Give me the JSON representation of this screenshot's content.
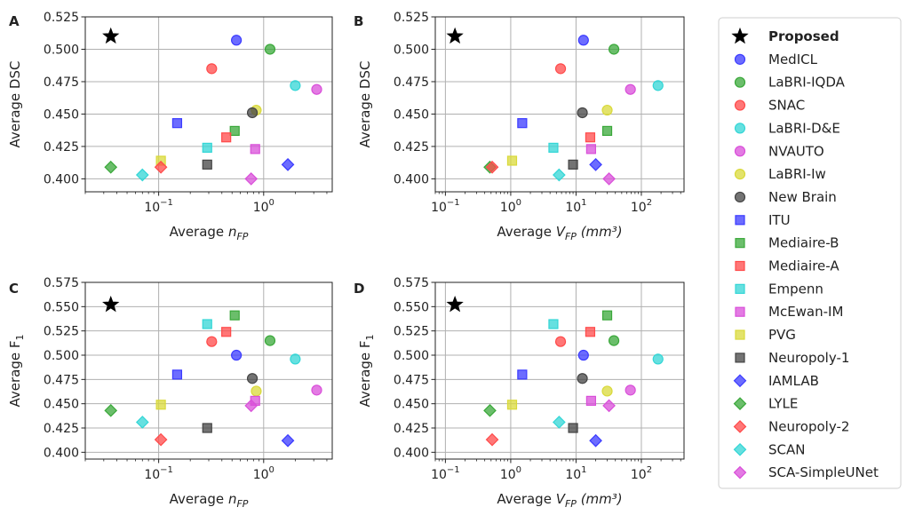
{
  "colors": {
    "MedICL": "#3b3bff",
    "LaBRI-IQDA": "#3aa83a",
    "SNAC": "#ff4a4a",
    "LaBRI-D&E": "#33d6d6",
    "NVAUTO": "#d94fd9",
    "LaBRI-Iw": "#d9d93a",
    "New Brain": "#444444",
    "ITU": "#3b3bff",
    "Mediaire-B": "#3aa83a",
    "Mediaire-A": "#ff4a4a",
    "Empenn": "#33d6d6",
    "McEwan-IM": "#d94fd9",
    "PVG": "#d9d93a",
    "Neuropoly-1": "#444444",
    "IAMLAB": "#3b3bff",
    "LYLE": "#3aa83a",
    "Neuropoly-2": "#ff4a4a",
    "SCAN": "#33d6d6",
    "SCA-SimpleUNet": "#d94fd9",
    "Proposed": "#000000"
  },
  "legend": [
    {
      "name": "Proposed",
      "marker": "star"
    },
    {
      "name": "MedICL",
      "marker": "circle"
    },
    {
      "name": "LaBRI-IQDA",
      "marker": "circle"
    },
    {
      "name": "SNAC",
      "marker": "circle"
    },
    {
      "name": "LaBRI-D&E",
      "marker": "circle"
    },
    {
      "name": "NVAUTO",
      "marker": "circle"
    },
    {
      "name": "LaBRI-Iw",
      "marker": "circle"
    },
    {
      "name": "New Brain",
      "marker": "circle"
    },
    {
      "name": "ITU",
      "marker": "square"
    },
    {
      "name": "Mediaire-B",
      "marker": "square"
    },
    {
      "name": "Mediaire-A",
      "marker": "square"
    },
    {
      "name": "Empenn",
      "marker": "square"
    },
    {
      "name": "McEwan-IM",
      "marker": "square"
    },
    {
      "name": "PVG",
      "marker": "square"
    },
    {
      "name": "Neuropoly-1",
      "marker": "square"
    },
    {
      "name": "IAMLAB",
      "marker": "diamond"
    },
    {
      "name": "LYLE",
      "marker": "diamond"
    },
    {
      "name": "Neuropoly-2",
      "marker": "diamond"
    },
    {
      "name": "SCAN",
      "marker": "diamond"
    },
    {
      "name": "SCA-SimpleUNet",
      "marker": "diamond"
    }
  ],
  "chart_data": [
    {
      "panel": "A",
      "type": "scatter",
      "xscale": "log",
      "xlabel_prefix": "Average ",
      "xlabel_var": "n",
      "xlabel_sub": "FP",
      "xlabel_suffix": "",
      "ylabel": "Average DSC",
      "ylabel_sub": "",
      "xlim": [
        0.02,
        4.5
      ],
      "ylim": [
        0.39,
        0.525
      ],
      "xticks": [
        {
          "v": 0.1,
          "base": "10",
          "exp": "−1"
        },
        {
          "v": 1,
          "base": "10",
          "exp": "0"
        }
      ],
      "yticks": [
        {
          "v": 0.4,
          "label": "0.400"
        },
        {
          "v": 0.425,
          "label": "0.425"
        },
        {
          "v": 0.45,
          "label": "0.450"
        },
        {
          "v": 0.475,
          "label": "0.475"
        },
        {
          "v": 0.5,
          "label": "0.500"
        },
        {
          "v": 0.525,
          "label": "0.525"
        }
      ],
      "points": [
        {
          "team": "Proposed",
          "x": 0.035,
          "y": 0.51
        },
        {
          "team": "MedICL",
          "x": 0.55,
          "y": 0.507
        },
        {
          "team": "LaBRI-IQDA",
          "x": 1.15,
          "y": 0.5
        },
        {
          "team": "SNAC",
          "x": 0.32,
          "y": 0.485
        },
        {
          "team": "LaBRI-D&E",
          "x": 2.0,
          "y": 0.472
        },
        {
          "team": "NVAUTO",
          "x": 3.2,
          "y": 0.469
        },
        {
          "team": "LaBRI-Iw",
          "x": 0.85,
          "y": 0.453
        },
        {
          "team": "New Brain",
          "x": 0.78,
          "y": 0.451
        },
        {
          "team": "ITU",
          "x": 0.15,
          "y": 0.443
        },
        {
          "team": "Mediaire-B",
          "x": 0.53,
          "y": 0.437
        },
        {
          "team": "Mediaire-A",
          "x": 0.44,
          "y": 0.432
        },
        {
          "team": "Empenn",
          "x": 0.29,
          "y": 0.424
        },
        {
          "team": "McEwan-IM",
          "x": 0.83,
          "y": 0.423
        },
        {
          "team": "PVG",
          "x": 0.105,
          "y": 0.414
        },
        {
          "team": "Neuropoly-1",
          "x": 0.29,
          "y": 0.411
        },
        {
          "team": "IAMLAB",
          "x": 1.7,
          "y": 0.411
        },
        {
          "team": "LYLE",
          "x": 0.035,
          "y": 0.409
        },
        {
          "team": "Neuropoly-2",
          "x": 0.105,
          "y": 0.409
        },
        {
          "team": "SCAN",
          "x": 0.07,
          "y": 0.403
        },
        {
          "team": "SCA-SimpleUNet",
          "x": 0.76,
          "y": 0.4
        }
      ]
    },
    {
      "panel": "B",
      "type": "scatter",
      "xscale": "log",
      "xlabel_prefix": "Average ",
      "xlabel_var": "V",
      "xlabel_sub": "FP",
      "xlabel_suffix": " (mm³)",
      "ylabel": "Average DSC",
      "ylabel_sub": "",
      "xlim": [
        0.07,
        450
      ],
      "ylim": [
        0.39,
        0.525
      ],
      "xticks": [
        {
          "v": 0.1,
          "base": "10",
          "exp": "−1"
        },
        {
          "v": 1,
          "base": "10",
          "exp": "0"
        },
        {
          "v": 10,
          "base": "10",
          "exp": "1"
        },
        {
          "v": 100,
          "base": "10",
          "exp": "2"
        }
      ],
      "yticks": [
        {
          "v": 0.4,
          "label": "0.400"
        },
        {
          "v": 0.425,
          "label": "0.425"
        },
        {
          "v": 0.45,
          "label": "0.450"
        },
        {
          "v": 0.475,
          "label": "0.475"
        },
        {
          "v": 0.5,
          "label": "0.500"
        },
        {
          "v": 0.525,
          "label": "0.525"
        }
      ],
      "points": [
        {
          "team": "Proposed",
          "x": 0.14,
          "y": 0.51
        },
        {
          "team": "MedICL",
          "x": 13,
          "y": 0.507
        },
        {
          "team": "LaBRI-IQDA",
          "x": 38,
          "y": 0.5
        },
        {
          "team": "SNAC",
          "x": 5.8,
          "y": 0.485
        },
        {
          "team": "LaBRI-D&E",
          "x": 180,
          "y": 0.472
        },
        {
          "team": "NVAUTO",
          "x": 68,
          "y": 0.469
        },
        {
          "team": "LaBRI-Iw",
          "x": 30,
          "y": 0.453
        },
        {
          "team": "New Brain",
          "x": 12.5,
          "y": 0.451
        },
        {
          "team": "ITU",
          "x": 1.5,
          "y": 0.443
        },
        {
          "team": "Mediaire-B",
          "x": 30,
          "y": 0.437
        },
        {
          "team": "Mediaire-A",
          "x": 16.5,
          "y": 0.432
        },
        {
          "team": "Empenn",
          "x": 4.5,
          "y": 0.424
        },
        {
          "team": "McEwan-IM",
          "x": 17,
          "y": 0.423
        },
        {
          "team": "PVG",
          "x": 1.05,
          "y": 0.414
        },
        {
          "team": "Neuropoly-1",
          "x": 9,
          "y": 0.411
        },
        {
          "team": "IAMLAB",
          "x": 20,
          "y": 0.411
        },
        {
          "team": "LYLE",
          "x": 0.48,
          "y": 0.409
        },
        {
          "team": "Neuropoly-2",
          "x": 0.52,
          "y": 0.409
        },
        {
          "team": "SCAN",
          "x": 5.5,
          "y": 0.403
        },
        {
          "team": "SCA-SimpleUNet",
          "x": 32,
          "y": 0.4
        }
      ]
    },
    {
      "panel": "C",
      "type": "scatter",
      "xscale": "log",
      "xlabel_prefix": "Average ",
      "xlabel_var": "n",
      "xlabel_sub": "FP",
      "xlabel_suffix": "",
      "ylabel": "Average F",
      "ylabel_sub": "1",
      "xlim": [
        0.02,
        4.5
      ],
      "ylim": [
        0.393,
        0.575
      ],
      "xticks": [
        {
          "v": 0.1,
          "base": "10",
          "exp": "−1"
        },
        {
          "v": 1,
          "base": "10",
          "exp": "0"
        }
      ],
      "yticks": [
        {
          "v": 0.4,
          "label": "0.400"
        },
        {
          "v": 0.425,
          "label": "0.425"
        },
        {
          "v": 0.45,
          "label": "0.450"
        },
        {
          "v": 0.475,
          "label": "0.475"
        },
        {
          "v": 0.5,
          "label": "0.500"
        },
        {
          "v": 0.525,
          "label": "0.525"
        },
        {
          "v": 0.55,
          "label": "0.550"
        },
        {
          "v": 0.575,
          "label": "0.575"
        }
      ],
      "points": [
        {
          "team": "Proposed",
          "x": 0.035,
          "y": 0.552
        },
        {
          "team": "MedICL",
          "x": 0.55,
          "y": 0.5
        },
        {
          "team": "LaBRI-IQDA",
          "x": 1.15,
          "y": 0.515
        },
        {
          "team": "SNAC",
          "x": 0.32,
          "y": 0.514
        },
        {
          "team": "LaBRI-D&E",
          "x": 2.0,
          "y": 0.496
        },
        {
          "team": "NVAUTO",
          "x": 3.2,
          "y": 0.464
        },
        {
          "team": "LaBRI-Iw",
          "x": 0.85,
          "y": 0.463
        },
        {
          "team": "New Brain",
          "x": 0.78,
          "y": 0.476
        },
        {
          "team": "ITU",
          "x": 0.15,
          "y": 0.48
        },
        {
          "team": "Mediaire-B",
          "x": 0.53,
          "y": 0.541
        },
        {
          "team": "Mediaire-A",
          "x": 0.44,
          "y": 0.524
        },
        {
          "team": "Empenn",
          "x": 0.29,
          "y": 0.532
        },
        {
          "team": "McEwan-IM",
          "x": 0.83,
          "y": 0.453
        },
        {
          "team": "PVG",
          "x": 0.105,
          "y": 0.449
        },
        {
          "team": "Neuropoly-1",
          "x": 0.29,
          "y": 0.425
        },
        {
          "team": "IAMLAB",
          "x": 1.7,
          "y": 0.412
        },
        {
          "team": "LYLE",
          "x": 0.035,
          "y": 0.443
        },
        {
          "team": "Neuropoly-2",
          "x": 0.105,
          "y": 0.413
        },
        {
          "team": "SCAN",
          "x": 0.07,
          "y": 0.431
        },
        {
          "team": "SCA-SimpleUNet",
          "x": 0.76,
          "y": 0.448
        }
      ]
    },
    {
      "panel": "D",
      "type": "scatter",
      "xscale": "log",
      "xlabel_prefix": "Average ",
      "xlabel_var": "V",
      "xlabel_sub": "FP",
      "xlabel_suffix": " (mm³)",
      "ylabel": "Average F",
      "ylabel_sub": "1",
      "xlim": [
        0.07,
        450
      ],
      "ylim": [
        0.393,
        0.575
      ],
      "xticks": [
        {
          "v": 0.1,
          "base": "10",
          "exp": "−1"
        },
        {
          "v": 1,
          "base": "10",
          "exp": "0"
        },
        {
          "v": 10,
          "base": "10",
          "exp": "1"
        },
        {
          "v": 100,
          "base": "10",
          "exp": "2"
        }
      ],
      "yticks": [
        {
          "v": 0.4,
          "label": "0.400"
        },
        {
          "v": 0.425,
          "label": "0.425"
        },
        {
          "v": 0.45,
          "label": "0.450"
        },
        {
          "v": 0.475,
          "label": "0.475"
        },
        {
          "v": 0.5,
          "label": "0.500"
        },
        {
          "v": 0.525,
          "label": "0.525"
        },
        {
          "v": 0.55,
          "label": "0.550"
        },
        {
          "v": 0.575,
          "label": "0.575"
        }
      ],
      "points": [
        {
          "team": "Proposed",
          "x": 0.14,
          "y": 0.552
        },
        {
          "team": "MedICL",
          "x": 13,
          "y": 0.5
        },
        {
          "team": "LaBRI-IQDA",
          "x": 38,
          "y": 0.515
        },
        {
          "team": "SNAC",
          "x": 5.8,
          "y": 0.514
        },
        {
          "team": "LaBRI-D&E",
          "x": 180,
          "y": 0.496
        },
        {
          "team": "NVAUTO",
          "x": 68,
          "y": 0.464
        },
        {
          "team": "LaBRI-Iw",
          "x": 30,
          "y": 0.463
        },
        {
          "team": "New Brain",
          "x": 12.5,
          "y": 0.476
        },
        {
          "team": "ITU",
          "x": 1.5,
          "y": 0.48
        },
        {
          "team": "Mediaire-B",
          "x": 30,
          "y": 0.541
        },
        {
          "team": "Mediaire-A",
          "x": 16.5,
          "y": 0.524
        },
        {
          "team": "Empenn",
          "x": 4.5,
          "y": 0.532
        },
        {
          "team": "McEwan-IM",
          "x": 17,
          "y": 0.453
        },
        {
          "team": "PVG",
          "x": 1.05,
          "y": 0.449
        },
        {
          "team": "Neuropoly-1",
          "x": 9,
          "y": 0.425
        },
        {
          "team": "IAMLAB",
          "x": 20,
          "y": 0.412
        },
        {
          "team": "LYLE",
          "x": 0.48,
          "y": 0.443
        },
        {
          "team": "Neuropoly-2",
          "x": 0.52,
          "y": 0.413
        },
        {
          "team": "SCAN",
          "x": 5.5,
          "y": 0.431
        },
        {
          "team": "SCA-SimpleUNet",
          "x": 32,
          "y": 0.448
        }
      ]
    }
  ]
}
